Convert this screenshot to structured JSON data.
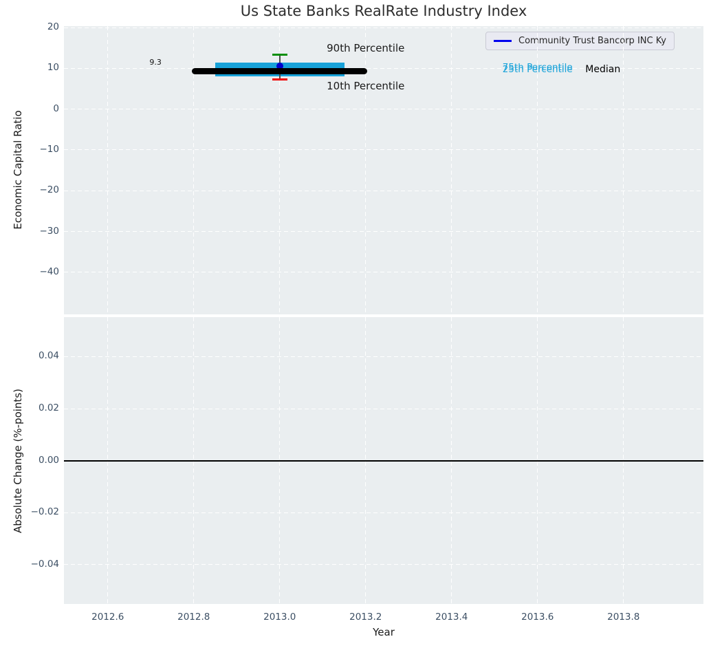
{
  "title": "Us State Banks RealRate Industry Index",
  "legend": {
    "label": "Community Trust Bancorp INC Ky",
    "line_color": "#0000ee"
  },
  "colors": {
    "plot_bg": "#eaeef0",
    "grid": "#ffffff",
    "tick_label": "#3b4e63",
    "text": "#1a1a1a",
    "box": "#18a2d9",
    "median_line": "#000000",
    "p90_cap": "#0a8f0a",
    "p10_cap": "#f00000",
    "company_marker": "#0000cd",
    "whisker": "#4a4a4a",
    "zero_line": "#000000"
  },
  "axes": {
    "x": {
      "label": "Year",
      "tick_labels": [
        "2012.6",
        "2012.8",
        "2013.0",
        "2013.2",
        "2013.4",
        "2013.6",
        "2013.8"
      ],
      "tick_values": [
        2012.6,
        2012.8,
        2013.0,
        2013.2,
        2013.4,
        2013.6,
        2013.8
      ],
      "range": [
        2012.498,
        2013.986
      ]
    },
    "y_top": {
      "label": "Economic Capital Ratio",
      "tick_labels": [
        "20",
        "10",
        "0",
        "−10",
        "−20",
        "−30",
        "−40"
      ],
      "tick_values": [
        20,
        10,
        0,
        -10,
        -20,
        -30,
        -40
      ],
      "range": [
        -50.3,
        20.35
      ]
    },
    "y_bottom": {
      "label": "Absolute Change (%-points)",
      "tick_labels": [
        "0.04",
        "0.02",
        "0.00",
        "−0.02",
        "−0.04"
      ],
      "tick_values": [
        0.04,
        0.02,
        0.0,
        -0.02,
        -0.04
      ],
      "range": [
        -0.0551,
        0.0552
      ]
    }
  },
  "chart_data": [
    {
      "type": "box",
      "subplot": "top",
      "title": "Us State Banks RealRate Industry Index",
      "xlabel": "Year",
      "ylabel": "Economic Capital Ratio",
      "x": 2013.0,
      "p90": 13.4,
      "p75": 11.4,
      "median": 9.3,
      "p25": 8.1,
      "p10": 7.2,
      "median_value_label": "9.3",
      "company_name": "Community Trust Bancorp INC Ky",
      "company_value": 10.5,
      "box_halfwidth": 0.15,
      "median_halfwidth": 0.204,
      "cap_halfwidth": 0.018,
      "grid": true,
      "legend_position": "upper right",
      "annotations": [
        {
          "name": "median-value-label",
          "text": "9.3",
          "x": 2012.711,
          "y": 11.3,
          "size": 11,
          "color": "#111111"
        },
        {
          "name": "p90-label",
          "text": "90th Percentile",
          "x": 2013.2,
          "y": 14.7,
          "size": 15,
          "color": "#1a1a1a"
        },
        {
          "name": "p10-label",
          "text": "10th Percentile",
          "x": 2013.2,
          "y": 5.4,
          "size": 15,
          "color": "#1a1a1a"
        },
        {
          "name": "p75-label",
          "text": "75th Percentile",
          "x": 2013.6,
          "y": 9.95,
          "size": 13.5,
          "color": "#18a2d9"
        },
        {
          "name": "p25-label",
          "text": "25th Percentile",
          "x": 2013.6,
          "y": 9.4,
          "size": 13.5,
          "color": "#18a2d9"
        },
        {
          "name": "median-label",
          "text": "Median",
          "x": 2013.752,
          "y": 9.3,
          "size": 14,
          "color": "#000000"
        }
      ]
    },
    {
      "type": "line",
      "subplot": "bottom",
      "xlabel": "Year",
      "ylabel": "Absolute Change (%-points)",
      "zero_line_y": 0.0,
      "series": []
    }
  ]
}
